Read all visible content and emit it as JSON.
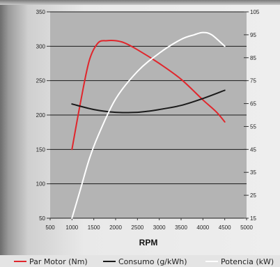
{
  "chart_data": {
    "type": "line",
    "xlabel": "RPM",
    "x_ticks": [
      500,
      1000,
      1500,
      2000,
      2500,
      3000,
      3500,
      4000,
      4500,
      5000
    ],
    "xlim": [
      500,
      5000
    ],
    "y_left_ticks": [
      50,
      100,
      150,
      200,
      250,
      300,
      350
    ],
    "ylim_left": [
      50,
      350
    ],
    "y_right_ticks": [
      15,
      25,
      35,
      45,
      55,
      65,
      75,
      85,
      95,
      105
    ],
    "ylim_right": [
      15,
      105
    ],
    "grid": true,
    "legend_position": "bottom",
    "series": [
      {
        "name": "Par Motor (Nm)",
        "axis": "left",
        "color": "#e0262c",
        "x": [
          1000,
          1200,
          1400,
          1600,
          1800,
          2000,
          2200,
          2500,
          3000,
          3500,
          4000,
          4300,
          4500
        ],
        "values": [
          150,
          220,
          280,
          305,
          308,
          308,
          305,
          295,
          275,
          252,
          222,
          205,
          190
        ]
      },
      {
        "name": "Consumo (g/kWh)",
        "axis": "left",
        "color": "#1a1a1a",
        "x": [
          1000,
          1500,
          2000,
          2500,
          2800,
          3000,
          3500,
          4000,
          4500
        ],
        "values": [
          216,
          208,
          204,
          204,
          206,
          208,
          214,
          224,
          236
        ]
      },
      {
        "name": "Potencia (kW)",
        "axis": "right",
        "color": "#ffffff",
        "x": [
          1000,
          1200,
          1400,
          1600,
          2000,
          2500,
          3000,
          3500,
          3800,
          4000,
          4200,
          4500
        ],
        "values": [
          15,
          28,
          41,
          51,
          67,
          79,
          87,
          93,
          95,
          96,
          95,
          90
        ]
      }
    ]
  }
}
